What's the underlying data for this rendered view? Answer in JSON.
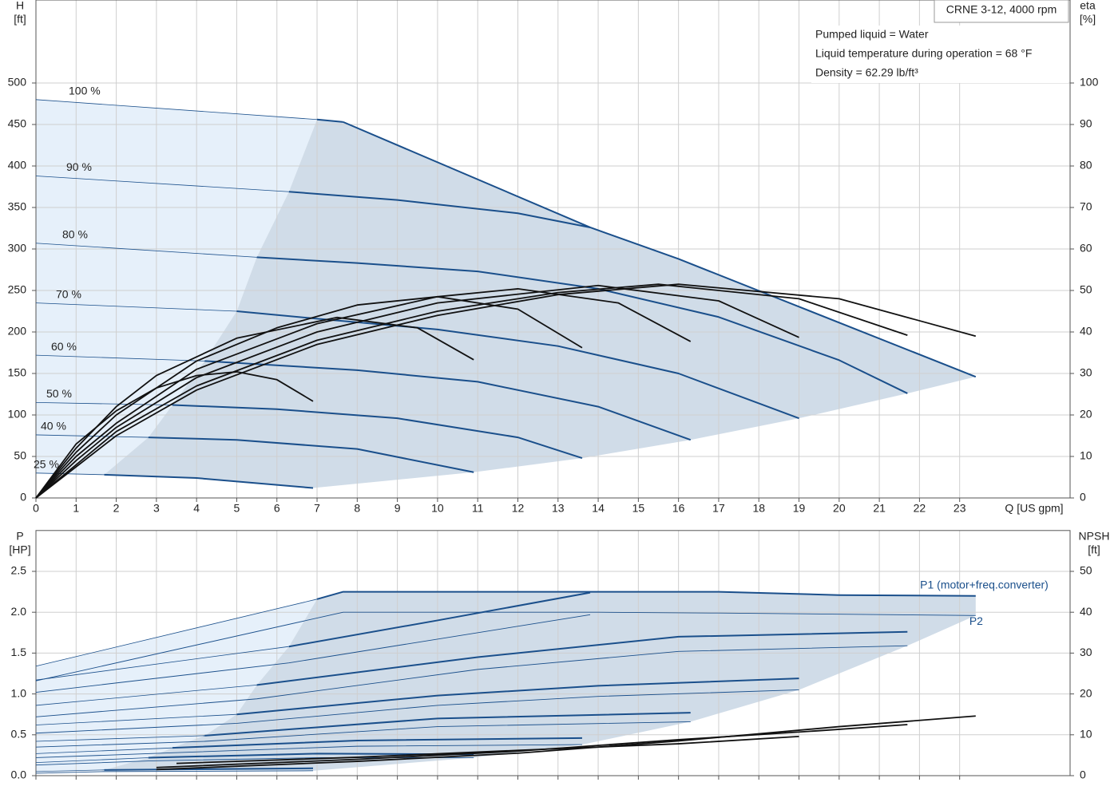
{
  "chart_data": [
    {
      "type": "line",
      "title": "CRNE 3-12, 4000 rpm",
      "notes": [
        "Pumped liquid = Water",
        "Liquid temperature during operation = 68 °F",
        "Density = 62.29 lb/ft³"
      ],
      "y_label": "H",
      "y_unit": "[ft]",
      "y2_label": "eta",
      "y2_unit": "[%]",
      "x_label": "Q [US gpm]",
      "xlim": [
        0,
        25.75
      ],
      "xticks": [
        0,
        1,
        2,
        3,
        4,
        5,
        6,
        7,
        8,
        9,
        10,
        11,
        12,
        13,
        14,
        15,
        16,
        17,
        18,
        19,
        20,
        21,
        22,
        23
      ],
      "ylim": [
        0,
        600
      ],
      "yticks": [
        0,
        50,
        100,
        150,
        200,
        250,
        300,
        350,
        400,
        450,
        500
      ],
      "y2lim": [
        0,
        120
      ],
      "y2ticks": [
        0,
        10,
        20,
        30,
        40,
        50,
        60,
        70,
        80,
        90,
        100
      ],
      "grid": true,
      "region_color": "#d0dce8",
      "light_region_color": "#e6f0fa",
      "series": [
        {
          "name": "100 %",
          "color": "#1a4f8b",
          "width": 2,
          "x": [
            0,
            7,
            7.65
          ],
          "values": [
            480,
            456,
            453
          ]
        },
        {
          "name": "90 %",
          "color": "#1a4f8b",
          "width": 2,
          "x": [
            0,
            6.3,
            9,
            12,
            13.8
          ],
          "values": [
            388,
            369,
            359,
            343,
            326
          ]
        },
        {
          "name": "80 %",
          "color": "#1a4f8b",
          "width": 2,
          "x": [
            0,
            5.5,
            8,
            11,
            14,
            17,
            20,
            21.7
          ],
          "values": [
            307,
            290,
            283,
            273,
            252,
            218,
            166,
            126
          ]
        },
        {
          "name": "70 %",
          "color": "#1a4f8b",
          "width": 2,
          "x": [
            0,
            5,
            7,
            10,
            13,
            16,
            19
          ],
          "values": [
            235,
            225,
            216,
            203,
            183,
            150,
            96
          ]
        },
        {
          "name": "60 %",
          "color": "#1a4f8b",
          "width": 2,
          "x": [
            0,
            4.2,
            8,
            11,
            14,
            16.3
          ],
          "values": [
            172,
            165,
            154,
            140,
            110,
            70
          ]
        },
        {
          "name": "50 %",
          "color": "#1a4f8b",
          "width": 2,
          "x": [
            0,
            3.4,
            6,
            9,
            12,
            13.6
          ],
          "values": [
            115,
            112,
            107,
            96,
            73,
            48
          ]
        },
        {
          "name": "40 %",
          "color": "#1a4f8b",
          "width": 2,
          "x": [
            0,
            2.8,
            5,
            8,
            10.9
          ],
          "values": [
            76,
            73,
            70,
            59,
            31
          ]
        },
        {
          "name": "25 %",
          "color": "#1a4f8b",
          "width": 2,
          "x": [
            0,
            1.7,
            4,
            6.9
          ],
          "values": [
            30,
            28,
            24,
            12
          ]
        },
        {
          "color": "#1a4f8b",
          "width": 2,
          "x": [
            7.65,
            13.8,
            16,
            23.4
          ],
          "values": [
            453,
            326,
            288,
            146
          ]
        },
        {
          "axis": "y2",
          "color": "#111111",
          "width": 1.8,
          "x": [
            0,
            1,
            2,
            3,
            4,
            5,
            6,
            6.9
          ],
          "values": [
            0,
            13,
            21,
            26.5,
            29.5,
            30.4,
            28.5,
            23.3
          ]
        },
        {
          "axis": "y2",
          "color": "#111111",
          "width": 1.8,
          "x": [
            0,
            1,
            2,
            3,
            5,
            7.5,
            9.5,
            10.9
          ],
          "values": [
            0,
            12,
            22,
            29.5,
            38.5,
            43.5,
            41,
            33.3
          ]
        },
        {
          "axis": "y2",
          "color": "#111111",
          "width": 1.8,
          "x": [
            0,
            1,
            2,
            4,
            6,
            8,
            10,
            12,
            13.6
          ],
          "values": [
            0,
            11,
            20,
            33,
            41,
            46.5,
            48.5,
            45.5,
            36.2
          ]
        },
        {
          "axis": "y2",
          "color": "#111111",
          "width": 1.8,
          "x": [
            0,
            1,
            2,
            4,
            7,
            10,
            12,
            14.5,
            16.3
          ],
          "values": [
            0,
            10,
            18,
            31,
            42,
            48.5,
            50.4,
            47,
            37.7
          ]
        },
        {
          "axis": "y2",
          "color": "#111111",
          "width": 1.8,
          "x": [
            0,
            1,
            2,
            4,
            7,
            10,
            14,
            17,
            19
          ],
          "values": [
            0,
            9,
            17,
            29,
            40,
            47,
            51.2,
            47.5,
            38.7
          ]
        },
        {
          "axis": "y2",
          "color": "#111111",
          "width": 1.8,
          "x": [
            0,
            1,
            2,
            4,
            7,
            10,
            13,
            15.5,
            19,
            21.7
          ],
          "values": [
            0,
            8,
            16,
            27,
            38,
            45,
            49.5,
            51.5,
            48,
            39.2
          ]
        },
        {
          "axis": "y2",
          "color": "#111111",
          "width": 1.8,
          "x": [
            0,
            1,
            2,
            4,
            7,
            10,
            13,
            16,
            20,
            23.4
          ],
          "values": [
            0,
            7.5,
            15,
            26,
            37,
            44,
            49,
            51.5,
            48,
            39
          ]
        }
      ]
    },
    {
      "type": "line",
      "y_label": "P",
      "y_unit": "[HP]",
      "y2_label": "NPSH",
      "y2_unit": "[ft]",
      "xlim": [
        0,
        25.75
      ],
      "xticks": [
        0,
        1,
        2,
        3,
        4,
        5,
        6,
        7,
        8,
        9,
        10,
        11,
        12,
        13,
        14,
        15,
        16,
        17,
        18,
        19,
        20,
        21,
        22,
        23
      ],
      "ylim": [
        0,
        3
      ],
      "yticks": [
        {
          "value": 0,
          "label": "0.0"
        },
        0.5,
        {
          "value": 1,
          "label": "1.0"
        },
        1.5,
        {
          "value": 2,
          "label": "2.0"
        },
        2.5
      ],
      "y2lim": [
        0,
        60
      ],
      "y2ticks": [
        0,
        10,
        20,
        30,
        40,
        50
      ],
      "grid": true,
      "region_color": "#d0dce8",
      "light_region_color": "#e6f0fa",
      "series": [
        {
          "name": "P1 (motor+freq.converter)",
          "color": "#1a4f8b",
          "width": 2,
          "x": [
            0,
            7,
            7.65,
            14,
            17,
            20,
            23.4
          ],
          "values": [
            1.34,
            2.16,
            2.25,
            2.25,
            2.25,
            2.21,
            2.2
          ]
        },
        {
          "name": "P2",
          "color": "#1a4f8b",
          "width": 1,
          "x": [
            0,
            7.65,
            14,
            17,
            23.4
          ],
          "values": [
            1.16,
            2.0,
            2.0,
            1.99,
            1.96
          ]
        },
        {
          "color": "#1a4f8b",
          "width": 2,
          "x": [
            0,
            6.3,
            10,
            13.8
          ],
          "values": [
            1.17,
            1.58,
            1.9,
            2.24
          ]
        },
        {
          "color": "#1a4f8b",
          "width": 1,
          "x": [
            0,
            6.3,
            13.8
          ],
          "values": [
            1.02,
            1.38,
            1.97
          ]
        },
        {
          "color": "#1a4f8b",
          "width": 2,
          "x": [
            0,
            5.5,
            11,
            16,
            21.7
          ],
          "values": [
            0.86,
            1.11,
            1.45,
            1.7,
            1.76
          ]
        },
        {
          "color": "#1a4f8b",
          "width": 1,
          "x": [
            0,
            5.5,
            11,
            16,
            21.7
          ],
          "values": [
            0.72,
            0.94,
            1.3,
            1.52,
            1.59
          ]
        },
        {
          "color": "#1a4f8b",
          "width": 2,
          "x": [
            0,
            5,
            10,
            14,
            19
          ],
          "values": [
            0.62,
            0.75,
            0.98,
            1.1,
            1.19
          ]
        },
        {
          "color": "#1a4f8b",
          "width": 1,
          "x": [
            0,
            5,
            10,
            14,
            19
          ],
          "values": [
            0.52,
            0.64,
            0.86,
            0.97,
            1.05
          ]
        },
        {
          "color": "#1a4f8b",
          "width": 2,
          "x": [
            0,
            4.2,
            10,
            16.3
          ],
          "values": [
            0.42,
            0.49,
            0.7,
            0.77
          ]
        },
        {
          "color": "#1a4f8b",
          "width": 1,
          "x": [
            0,
            4.2,
            10,
            16.3
          ],
          "values": [
            0.35,
            0.42,
            0.6,
            0.66
          ]
        },
        {
          "color": "#1a4f8b",
          "width": 2,
          "x": [
            0,
            3.4,
            8,
            13.6
          ],
          "values": [
            0.27,
            0.34,
            0.43,
            0.46
          ]
        },
        {
          "color": "#1a4f8b",
          "width": 1,
          "x": [
            0,
            3.4,
            8,
            13.6
          ],
          "values": [
            0.22,
            0.28,
            0.36,
            0.38
          ]
        },
        {
          "color": "#1a4f8b",
          "width": 2,
          "x": [
            0,
            2.8,
            7,
            10.9
          ],
          "values": [
            0.16,
            0.22,
            0.27,
            0.26
          ]
        },
        {
          "color": "#1a4f8b",
          "width": 1,
          "x": [
            0,
            2.8,
            7,
            10.9
          ],
          "values": [
            0.13,
            0.18,
            0.22,
            0.22
          ]
        },
        {
          "color": "#1a4f8b",
          "width": 2,
          "x": [
            0,
            1.7,
            6.9
          ],
          "values": [
            0.05,
            0.07,
            0.09
          ]
        },
        {
          "color": "#1a4f8b",
          "width": 1,
          "x": [
            0,
            1.7,
            6.9
          ],
          "values": [
            0.03,
            0.05,
            0.06
          ]
        },
        {
          "axis": "y2",
          "color": "#111111",
          "width": 1.8,
          "x": [
            3,
            8,
            12,
            16,
            20,
            23.4
          ],
          "values": [
            1.5,
            3.5,
            5.5,
            8.5,
            12,
            14.6
          ]
        },
        {
          "axis": "y2",
          "color": "#111111",
          "width": 1.8,
          "x": [
            3,
            8,
            12,
            16,
            19.5,
            21.7
          ],
          "values": [
            2,
            4,
            6,
            8.8,
            11,
            12.5
          ]
        },
        {
          "axis": "y2",
          "color": "#111111",
          "width": 1.8,
          "x": [
            3.5,
            8,
            12,
            16,
            19
          ],
          "values": [
            3,
            4.5,
            6.2,
            7.8,
            9.6
          ]
        }
      ]
    }
  ]
}
